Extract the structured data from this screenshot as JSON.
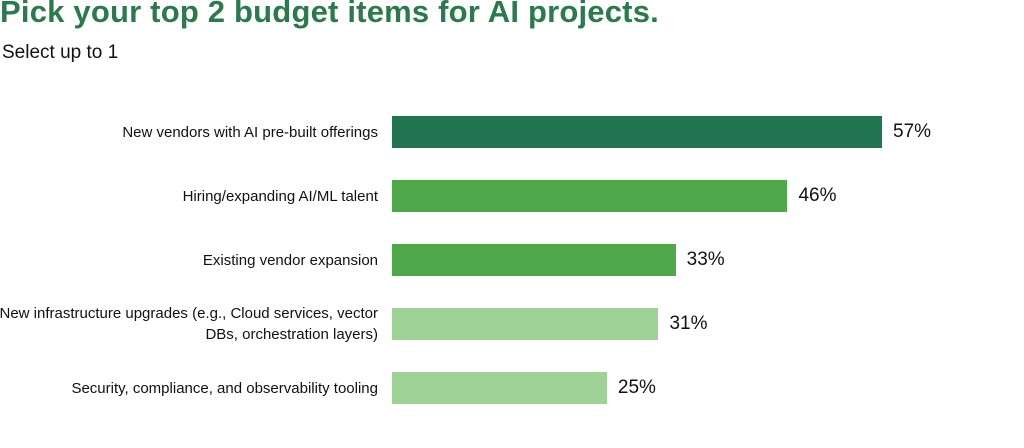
{
  "chart_data": {
    "type": "bar",
    "orientation": "horizontal",
    "title": "Pick your top 2 budget items for AI projects.",
    "subtitle": "Select up to 1",
    "categories": [
      "New vendors with AI pre-built offerings",
      "Hiring/expanding AI/ML talent",
      "Existing vendor expansion",
      "New infrastructure upgrades (e.g., Cloud services, vector DBs, orchestration layers)",
      "Security, compliance, and observability tooling"
    ],
    "values": [
      57,
      46,
      33,
      31,
      25
    ],
    "value_labels": [
      "57%",
      "46%",
      "33%",
      "31%",
      "25%"
    ],
    "bar_colors": [
      "#217551",
      "#4fa84a",
      "#4fa84a",
      "#9ed296",
      "#9ed296"
    ],
    "xlim": [
      0,
      100
    ],
    "xlabel": "",
    "ylabel": "",
    "grid": false
  },
  "colors": {
    "title": "#2a7a4b"
  }
}
